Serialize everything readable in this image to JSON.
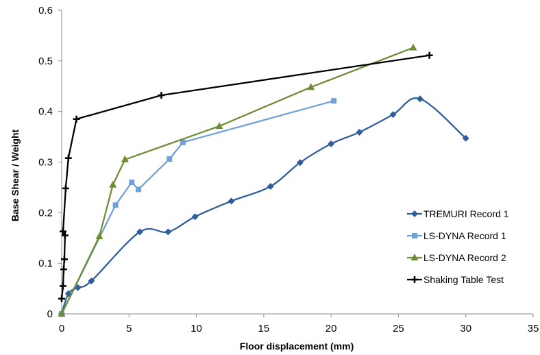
{
  "chart_data": {
    "type": "line",
    "title": "",
    "xlabel": "Floor displacement (mm)",
    "ylabel": "Base Shear / Weight",
    "xlim": [
      0,
      35
    ],
    "ylim": [
      0,
      0.6
    ],
    "xticks": [
      "0",
      "5",
      "10",
      "15",
      "20",
      "25",
      "30",
      "35"
    ],
    "yticks": [
      "0",
      "0.1",
      "0.2",
      "0.3",
      "0.4",
      "0.5",
      "0.6"
    ],
    "grid": false,
    "legend_position": "bottom-right",
    "series": [
      {
        "name": "TREMURI Record 1",
        "color": "#2e5f9a",
        "marker": "diamond",
        "smooth": true,
        "points": [
          [
            0,
            0
          ],
          [
            0.5,
            0.04
          ],
          [
            1.2,
            0.052
          ],
          [
            2.2,
            0.065
          ],
          [
            5.8,
            0.162
          ],
          [
            7.9,
            0.162
          ],
          [
            9.9,
            0.192
          ],
          [
            12.6,
            0.223
          ],
          [
            15.5,
            0.252
          ],
          [
            17.7,
            0.299
          ],
          [
            20,
            0.336
          ],
          [
            22.1,
            0.359
          ],
          [
            24.6,
            0.394
          ],
          [
            26.6,
            0.425
          ],
          [
            30,
            0.347
          ]
        ]
      },
      {
        "name": "LS-DYNA Record 1",
        "color": "#6fa0d8",
        "marker": "square",
        "smooth": false,
        "points": [
          [
            0,
            0
          ],
          [
            4,
            0.215
          ],
          [
            5.2,
            0.26
          ],
          [
            5.7,
            0.246
          ],
          [
            8,
            0.306
          ],
          [
            9,
            0.339
          ],
          [
            20.2,
            0.421
          ]
        ]
      },
      {
        "name": "LS-DYNA Record 2",
        "color": "#6f8d35",
        "marker": "triangle",
        "smooth": false,
        "points": [
          [
            0,
            0
          ],
          [
            2.8,
            0.153
          ],
          [
            3.8,
            0.255
          ],
          [
            4.7,
            0.305
          ],
          [
            11.7,
            0.371
          ],
          [
            18.5,
            0.448
          ],
          [
            26.1,
            0.526
          ]
        ]
      },
      {
        "name": "Shaking Table Test",
        "color": "#000000",
        "marker": "plus",
        "smooth": false,
        "points": [
          [
            0,
            0.03
          ],
          [
            0.1,
            0.055
          ],
          [
            0.15,
            0.088
          ],
          [
            0.2,
            0.108
          ],
          [
            0.25,
            0.155
          ],
          [
            0.1,
            0.163
          ],
          [
            0.3,
            0.248
          ],
          [
            0.5,
            0.308
          ],
          [
            1.1,
            0.385
          ],
          [
            7.4,
            0.432
          ],
          [
            27.3,
            0.511
          ]
        ]
      }
    ]
  }
}
